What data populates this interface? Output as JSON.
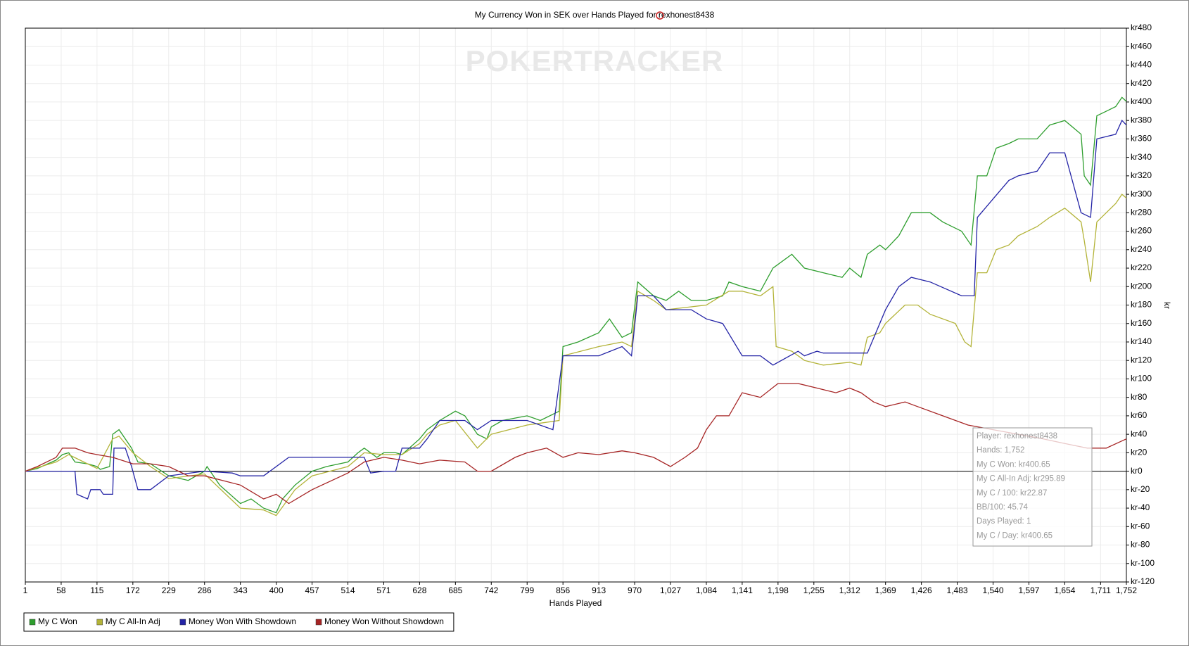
{
  "chart_data": {
    "type": "line",
    "title": "My Currency Won in SEK over Hands Played for rexhonest8438",
    "watermark": "POKERTRACKER",
    "xlabel": "Hands Played",
    "ylabel": "kr",
    "xlim": [
      1,
      1752
    ],
    "xticks": [
      1,
      58,
      115,
      172,
      229,
      286,
      343,
      400,
      457,
      514,
      571,
      628,
      685,
      742,
      799,
      856,
      913,
      970,
      {
        "value": 1027,
        "label": "1,027"
      },
      {
        "value": 1084,
        "label": "1,084"
      },
      {
        "value": 1141,
        "label": "1,141"
      },
      {
        "value": 1198,
        "label": "1,198"
      },
      {
        "value": 1255,
        "label": "1,255"
      },
      {
        "value": 1312,
        "label": "1,312"
      },
      {
        "value": 1369,
        "label": "1,369"
      },
      {
        "value": 1426,
        "label": "1,426"
      },
      {
        "value": 1483,
        "label": "1,483"
      },
      {
        "value": 1540,
        "label": "1,540"
      },
      {
        "value": 1597,
        "label": "1,597"
      },
      {
        "value": 1654,
        "label": "1,654"
      },
      {
        "value": 1711,
        "label": "1,711"
      },
      {
        "value": 1752,
        "label": "1,752"
      }
    ],
    "ylim": [
      -120,
      480
    ],
    "yticks": [
      {
        "value": -120,
        "label": "kr-120"
      },
      {
        "value": -100,
        "label": "kr-100"
      },
      {
        "value": -80,
        "label": "kr-80"
      },
      {
        "value": -60,
        "label": "kr-60"
      },
      {
        "value": -40,
        "label": "kr-40"
      },
      {
        "value": -20,
        "label": "kr-20"
      },
      {
        "value": 0,
        "label": "kr0"
      },
      {
        "value": 20,
        "label": "kr20"
      },
      {
        "value": 40,
        "label": "kr40"
      },
      {
        "value": 60,
        "label": "kr60"
      },
      {
        "value": 80,
        "label": "kr80"
      },
      {
        "value": 100,
        "label": "kr100"
      },
      {
        "value": 120,
        "label": "kr120"
      },
      {
        "value": 140,
        "label": "kr140"
      },
      {
        "value": 160,
        "label": "kr160"
      },
      {
        "value": 180,
        "label": "kr180"
      },
      {
        "value": 200,
        "label": "kr200"
      },
      {
        "value": 220,
        "label": "kr220"
      },
      {
        "value": 240,
        "label": "kr240"
      },
      {
        "value": 260,
        "label": "kr260"
      },
      {
        "value": 280,
        "label": "kr280"
      },
      {
        "value": 300,
        "label": "kr300"
      },
      {
        "value": 320,
        "label": "kr320"
      },
      {
        "value": 340,
        "label": "kr340"
      },
      {
        "value": 360,
        "label": "kr360"
      },
      {
        "value": 380,
        "label": "kr380"
      },
      {
        "value": 400,
        "label": "kr400"
      },
      {
        "value": 420,
        "label": "kr420"
      },
      {
        "value": 440,
        "label": "kr440"
      },
      {
        "value": 460,
        "label": "kr460"
      },
      {
        "value": 480,
        "label": "kr480"
      }
    ],
    "grid": true,
    "legend": "bottom",
    "tooltip": [
      "Player: rexhonest8438",
      "Hands: 1,752",
      "My C Won: kr400.65",
      "My C All-In Adj: kr295.89",
      "My C / 100: kr22.87",
      "BB/100: 45.74",
      "Days Played: 1",
      "My C / Day: kr400.65"
    ],
    "series": [
      {
        "name": "My C Won",
        "color": "#2e9e2e",
        "x": [
          1,
          20,
          50,
          60,
          70,
          80,
          100,
          115,
          120,
          135,
          140,
          150,
          170,
          180,
          200,
          229,
          260,
          286,
          290,
          310,
          343,
          360,
          380,
          400,
          410,
          430,
          457,
          480,
          514,
          530,
          540,
          560,
          571,
          590,
          600,
          628,
          640,
          660,
          685,
          700,
          720,
          735,
          742,
          760,
          799,
          820,
          850,
          856,
          880,
          913,
          930,
          950,
          965,
          975,
          1000,
          1020,
          1040,
          1060,
          1084,
          1110,
          1120,
          1141,
          1170,
          1190,
          1220,
          1240,
          1270,
          1300,
          1312,
          1330,
          1340,
          1360,
          1369,
          1390,
          1410,
          1440,
          1460,
          1490,
          1505,
          1515,
          1530,
          1545,
          1565,
          1580,
          1610,
          1630,
          1654,
          1680,
          1685,
          1695,
          1705,
          1720,
          1735,
          1745,
          1752
        ],
        "values": [
          0,
          3,
          12,
          18,
          20,
          10,
          8,
          5,
          2,
          5,
          40,
          45,
          25,
          10,
          8,
          -5,
          -10,
          0,
          5,
          -15,
          -35,
          -30,
          -40,
          -45,
          -30,
          -15,
          0,
          5,
          10,
          20,
          25,
          15,
          20,
          20,
          18,
          35,
          45,
          55,
          65,
          60,
          40,
          35,
          48,
          55,
          60,
          55,
          65,
          135,
          140,
          150,
          165,
          145,
          150,
          205,
          190,
          185,
          195,
          185,
          185,
          190,
          205,
          200,
          195,
          220,
          235,
          220,
          215,
          210,
          220,
          210,
          235,
          245,
          240,
          255,
          280,
          280,
          270,
          260,
          245,
          320,
          320,
          350,
          355,
          360,
          360,
          375,
          380,
          365,
          320,
          310,
          385,
          390,
          395,
          405,
          400.65
        ]
      },
      {
        "name": "My C All-In Adj",
        "color": "#b3b338",
        "x": [
          1,
          50,
          70,
          115,
          140,
          150,
          172,
          200,
          229,
          286,
          343,
          380,
          400,
          430,
          457,
          514,
          540,
          571,
          600,
          628,
          640,
          660,
          685,
          720,
          742,
          799,
          850,
          856,
          913,
          950,
          965,
          975,
          1000,
          1020,
          1084,
          1120,
          1141,
          1170,
          1190,
          1195,
          1220,
          1240,
          1270,
          1312,
          1330,
          1340,
          1360,
          1369,
          1400,
          1420,
          1440,
          1480,
          1495,
          1505,
          1515,
          1530,
          1545,
          1565,
          1580,
          1610,
          1630,
          1654,
          1680,
          1685,
          1695,
          1705,
          1720,
          1735,
          1745,
          1752
        ],
        "values": [
          0,
          10,
          18,
          3,
          35,
          38,
          20,
          5,
          -8,
          -3,
          -40,
          -42,
          -48,
          -20,
          -5,
          5,
          20,
          18,
          18,
          30,
          40,
          50,
          55,
          25,
          40,
          50,
          55,
          125,
          135,
          140,
          135,
          195,
          185,
          175,
          180,
          195,
          195,
          190,
          200,
          135,
          130,
          120,
          115,
          118,
          115,
          145,
          150,
          160,
          180,
          180,
          170,
          160,
          140,
          135,
          215,
          215,
          240,
          245,
          255,
          265,
          275,
          285,
          270,
          250,
          205,
          270,
          280,
          290,
          300,
          295.89
        ]
      },
      {
        "name": "Money Won With Showdown",
        "color": "#2424a6",
        "x": [
          1,
          50,
          80,
          83,
          100,
          105,
          120,
          125,
          140,
          142,
          160,
          170,
          180,
          200,
          229,
          286,
          330,
          343,
          380,
          420,
          514,
          540,
          550,
          571,
          590,
          600,
          628,
          640,
          660,
          700,
          720,
          742,
          799,
          840,
          856,
          913,
          950,
          965,
          975,
          1000,
          1020,
          1060,
          1084,
          1110,
          1141,
          1170,
          1190,
          1230,
          1240,
          1260,
          1270,
          1340,
          1369,
          1390,
          1410,
          1440,
          1490,
          1510,
          1515,
          1540,
          1565,
          1580,
          1610,
          1630,
          1654,
          1680,
          1695,
          1705,
          1735,
          1745,
          1752
        ],
        "values": [
          0,
          0,
          0,
          -25,
          -30,
          -20,
          -20,
          -25,
          -25,
          25,
          25,
          5,
          -20,
          -20,
          -5,
          0,
          -2,
          -5,
          -5,
          15,
          15,
          15,
          -2,
          0,
          0,
          25,
          25,
          35,
          55,
          55,
          45,
          55,
          55,
          45,
          125,
          125,
          135,
          125,
          190,
          190,
          175,
          175,
          165,
          160,
          125,
          125,
          115,
          130,
          125,
          130,
          128,
          128,
          175,
          200,
          210,
          205,
          190,
          190,
          275,
          295,
          315,
          320,
          325,
          345,
          345,
          280,
          275,
          360,
          365,
          380,
          375
        ]
      },
      {
        "name": "Money Won Without Showdown",
        "color": "#a62424",
        "x": [
          1,
          20,
          50,
          60,
          80,
          100,
          115,
          140,
          172,
          200,
          229,
          260,
          286,
          343,
          380,
          400,
          420,
          457,
          514,
          540,
          571,
          600,
          628,
          660,
          700,
          720,
          742,
          780,
          799,
          830,
          856,
          880,
          913,
          950,
          970,
          1000,
          1027,
          1050,
          1070,
          1084,
          1100,
          1120,
          1141,
          1170,
          1198,
          1230,
          1260,
          1290,
          1312,
          1330,
          1350,
          1369,
          1400,
          1420,
          1460,
          1500,
          1540,
          1580,
          1620,
          1654,
          1690,
          1720,
          1752
        ],
        "values": [
          0,
          5,
          15,
          25,
          25,
          20,
          18,
          15,
          8,
          8,
          5,
          -5,
          -5,
          -15,
          -30,
          -25,
          -35,
          -20,
          -2,
          10,
          15,
          12,
          8,
          12,
          10,
          0,
          0,
          15,
          20,
          25,
          15,
          20,
          18,
          22,
          20,
          15,
          5,
          15,
          25,
          45,
          60,
          60,
          85,
          80,
          95,
          95,
          90,
          85,
          90,
          85,
          75,
          70,
          75,
          70,
          60,
          50,
          45,
          40,
          35,
          30,
          25,
          25,
          35
        ]
      }
    ]
  }
}
